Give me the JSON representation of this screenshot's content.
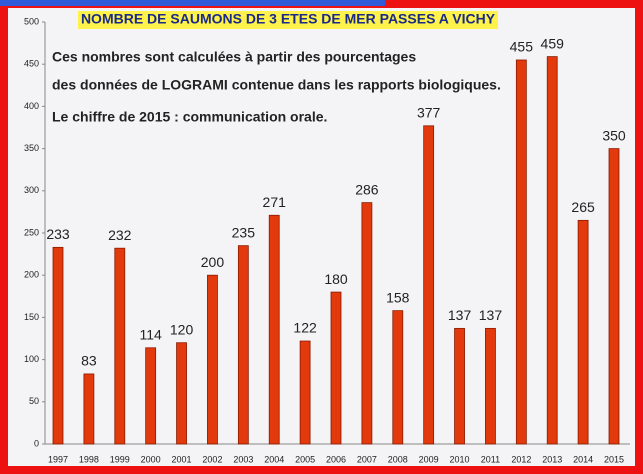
{
  "chart_data": {
    "type": "bar",
    "title": "NOMBRE DE SAUMONS DE  3 ETES DE MER PASSES A VICHY",
    "annotations": [
      "Ces nombres sont calculées à partir des pourcentages",
      "des données de LOGRAMI contenue dans les rapports biologiques.",
      "Le chiffre de 2015  : communication orale."
    ],
    "categories": [
      "1997",
      "1998",
      "1999",
      "2000",
      "2001",
      "2002",
      "2003",
      "2004",
      "2005",
      "2006",
      "2007",
      "2008",
      "2009",
      "2010",
      "2011",
      "2012",
      "2013",
      "2014",
      "2015"
    ],
    "values": [
      233,
      83,
      232,
      114,
      120,
      200,
      235,
      271,
      122,
      180,
      286,
      158,
      377,
      137,
      137,
      455,
      459,
      265,
      350
    ],
    "color": "#e23a0c",
    "ylim": [
      0,
      500
    ],
    "yticks": [
      0,
      50,
      100,
      150,
      200,
      250,
      300,
      350,
      400,
      450,
      500
    ]
  }
}
